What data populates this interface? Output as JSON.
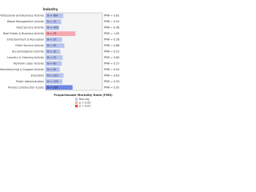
{
  "chart_data": {
    "type": "bar",
    "orientation": "horizontal",
    "title": "Industry",
    "x_label": "Proportionate Mortality Ratio (PMR)",
    "categories": [
      "Finance, Professional and Business Activity",
      "Waste Management Activity",
      "Food Service Activity",
      "Real Estate & Business Activity",
      "Entertainment & Recreation",
      "Other Service Activity",
      "Accommodation Activity",
      "Laundry & Cleaning Activity",
      "Nonfarm Labor Activity",
      "Manufacturing & Support Activity",
      "Education",
      "Public Administration",
      "Private Construction & Jobs"
    ],
    "values": [
      0.62,
      0.55,
      0.48,
      1.05,
      0.58,
      0.66,
      0.52,
      0.6,
      0.57,
      0.5,
      0.63,
      0.59,
      0.95
    ],
    "value_labels": [
      "PMR = 0.62",
      "PMR = 0.55",
      "PMR = 0.48",
      "PMR = 1.05",
      "PMR = 0.58",
      "PMR = 0.66",
      "PMR = 0.52",
      "PMR = 0.60",
      "PMR = 0.57",
      "PMR = 0.50",
      "PMR = 0.63",
      "PMR = 0.59",
      "PMR = 0.95"
    ],
    "count_labels": [
      "N = 964",
      "N = 12",
      "N = 148",
      "N = 33",
      "N = 27",
      "N = 91",
      "N = 15",
      "N = 22",
      "N = 40",
      "N = 61",
      "N = 210",
      "N = 176",
      "N = 388"
    ],
    "colors": [
      "#b8c4f0",
      "#b8c4f0",
      "#b8c4f0",
      "#f4a8b0",
      "#b8c4f0",
      "#b8c4f0",
      "#b8c4f0",
      "#b8c4f0",
      "#b8c4f0",
      "#b8c4f0",
      "#b8c4f0",
      "#b8c4f0",
      "#6f84e4"
    ],
    "xlim": [
      0,
      2
    ],
    "legend": [
      {
        "name": "Non-sig",
        "color": "#b8c4f0"
      },
      {
        "name": "p < 0.05",
        "color": "#f4a8b0"
      },
      {
        "name": "p < 0.01",
        "color": "#e8404a"
      }
    ],
    "legend_position": "lower-center"
  }
}
